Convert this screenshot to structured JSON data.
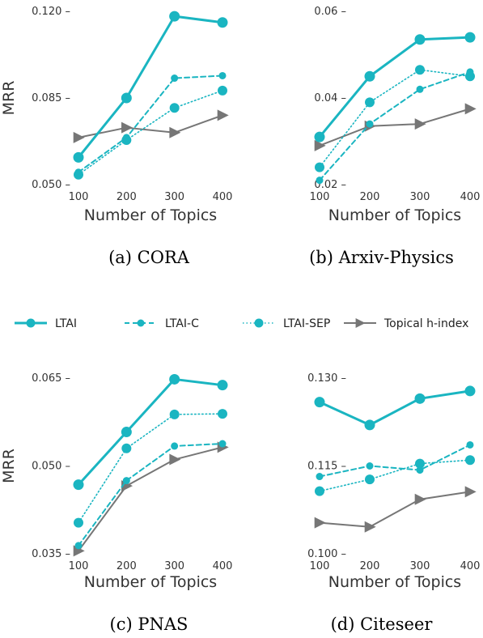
{
  "colors": {
    "ltai": "#1ab5c1",
    "hindex": "#767676",
    "text": "#333333"
  },
  "legend": [
    {
      "name": "LTAI",
      "key": "ltai"
    },
    {
      "name": "LTAI-C",
      "key": "ltaic"
    },
    {
      "name": "LTAI-SEP",
      "key": "ltaisep"
    },
    {
      "name": "Topical h-index",
      "key": "hindex"
    }
  ],
  "chart_data": [
    {
      "type": "line",
      "caption": "(a) CORA",
      "xlabel": "Number of Topics",
      "ylabel": "MRR",
      "x": [
        100,
        200,
        300,
        400
      ],
      "xticks": [
        "100",
        "200",
        "300",
        "400"
      ],
      "ylim": [
        0.05,
        0.12
      ],
      "yticks": [
        0.05,
        0.085,
        0.12
      ],
      "yticklabels": [
        "0.050",
        "0.085",
        "0.120"
      ],
      "series": [
        {
          "name": "LTAI",
          "values": [
            0.061,
            0.085,
            0.118,
            0.1155
          ]
        },
        {
          "name": "LTAI-C",
          "values": [
            0.055,
            0.069,
            0.093,
            0.094
          ]
        },
        {
          "name": "LTAI-SEP",
          "values": [
            0.054,
            0.068,
            0.081,
            0.088
          ]
        },
        {
          "name": "Topical h-index",
          "values": [
            0.069,
            0.073,
            0.071,
            0.078
          ]
        }
      ]
    },
    {
      "type": "line",
      "caption": "(b) Arxiv-Physics",
      "xlabel": "Number of Topics",
      "ylabel": "",
      "x": [
        100,
        200,
        300,
        400
      ],
      "xticks": [
        "100",
        "200",
        "300",
        "400"
      ],
      "ylim": [
        0.02,
        0.06
      ],
      "yticks": [
        0.02,
        0.04,
        0.06
      ],
      "yticklabels": [
        "0.02",
        "0.04",
        "0.06"
      ],
      "series": [
        {
          "name": "LTAI",
          "values": [
            0.031,
            0.045,
            0.0535,
            0.054
          ]
        },
        {
          "name": "LTAI-C",
          "values": [
            0.021,
            0.034,
            0.042,
            0.046
          ]
        },
        {
          "name": "LTAI-SEP",
          "values": [
            0.024,
            0.039,
            0.0465,
            0.045
          ]
        },
        {
          "name": "Topical h-index",
          "values": [
            0.029,
            0.0335,
            0.034,
            0.0375
          ]
        }
      ]
    },
    {
      "type": "line",
      "caption": "(c) PNAS",
      "xlabel": "Number of Topics",
      "ylabel": "MRR",
      "x": [
        100,
        200,
        300,
        400
      ],
      "xticks": [
        "100",
        "200",
        "300",
        "400"
      ],
      "ylim": [
        0.035,
        0.065
      ],
      "yticks": [
        0.035,
        0.05,
        0.065
      ],
      "yticklabels": [
        "0.035",
        "0.050",
        "0.065"
      ],
      "series": [
        {
          "name": "LTAI",
          "values": [
            0.0468,
            0.0558,
            0.0648,
            0.0638
          ]
        },
        {
          "name": "LTAI-C",
          "values": [
            0.0364,
            0.0475,
            0.0534,
            0.0538
          ]
        },
        {
          "name": "LTAI-SEP",
          "values": [
            0.0403,
            0.053,
            0.0588,
            0.0589
          ]
        },
        {
          "name": "Topical h-index",
          "values": [
            0.0355,
            0.0466,
            0.0511,
            0.0532
          ]
        }
      ]
    },
    {
      "type": "line",
      "caption": "(d) Citeseer",
      "xlabel": "Number of Topics",
      "ylabel": "",
      "x": [
        100,
        200,
        300,
        400
      ],
      "xticks": [
        "100",
        "200",
        "300",
        "400"
      ],
      "ylim": [
        0.1,
        0.13
      ],
      "yticks": [
        0.1,
        0.115,
        0.13
      ],
      "yticklabels": [
        "0.100",
        "0.115",
        "0.130"
      ],
      "series": [
        {
          "name": "LTAI",
          "values": [
            0.1259,
            0.122,
            0.1265,
            0.1278
          ]
        },
        {
          "name": "LTAI-C",
          "values": [
            0.1132,
            0.115,
            0.1143,
            0.1186
          ]
        },
        {
          "name": "LTAI-SEP",
          "values": [
            0.1107,
            0.1127,
            0.1154,
            0.116
          ]
        },
        {
          "name": "Topical h-index",
          "values": [
            0.1053,
            0.1046,
            0.1093,
            0.1106
          ]
        }
      ]
    }
  ]
}
